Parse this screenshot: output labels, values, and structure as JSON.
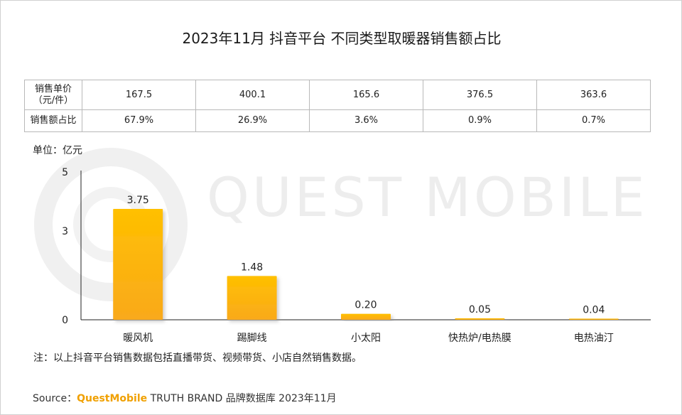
{
  "title": "2023年11月 抖音平台 不同类型取暖器销售额占比",
  "table": {
    "row1_label_line1": "销售单价",
    "row1_label_line2": "（元/件）",
    "row2_label": "销售额占比",
    "unit_prices": [
      "167.5",
      "400.1",
      "165.6",
      "376.5",
      "363.6"
    ],
    "shares": [
      "67.9%",
      "26.9%",
      "3.6%",
      "0.9%",
      "0.7%"
    ]
  },
  "unit_label": "单位：亿元",
  "watermark": "QUEST MOBILE",
  "note": "注：以上抖音平台销售数据包括直播带货、视频带货、小店自然销售数据。",
  "source": {
    "prefix": "Source：",
    "brand": "QuestMobile",
    "suffix": " TRUTH BRAND 品牌数据库 2023年11月"
  },
  "colors": {
    "bar_top": "#ffc000",
    "bar_bottom": "#f9a91b",
    "axis": "#222222"
  },
  "chart_data": {
    "type": "bar",
    "title": "2023年11月 抖音平台 不同类型取暖器销售额占比",
    "categories": [
      "暖风机",
      "踢脚线",
      "小太阳",
      "快热炉/电热膜",
      "电热油汀"
    ],
    "values": [
      3.75,
      1.48,
      0.2,
      0.05,
      0.04
    ],
    "value_labels": [
      "3.75",
      "1.48",
      "0.20",
      "0.05",
      "0.04"
    ],
    "ylabel": "亿元",
    "ylim": [
      0,
      5
    ],
    "yticks": [
      0,
      3,
      5
    ],
    "grid": false
  }
}
